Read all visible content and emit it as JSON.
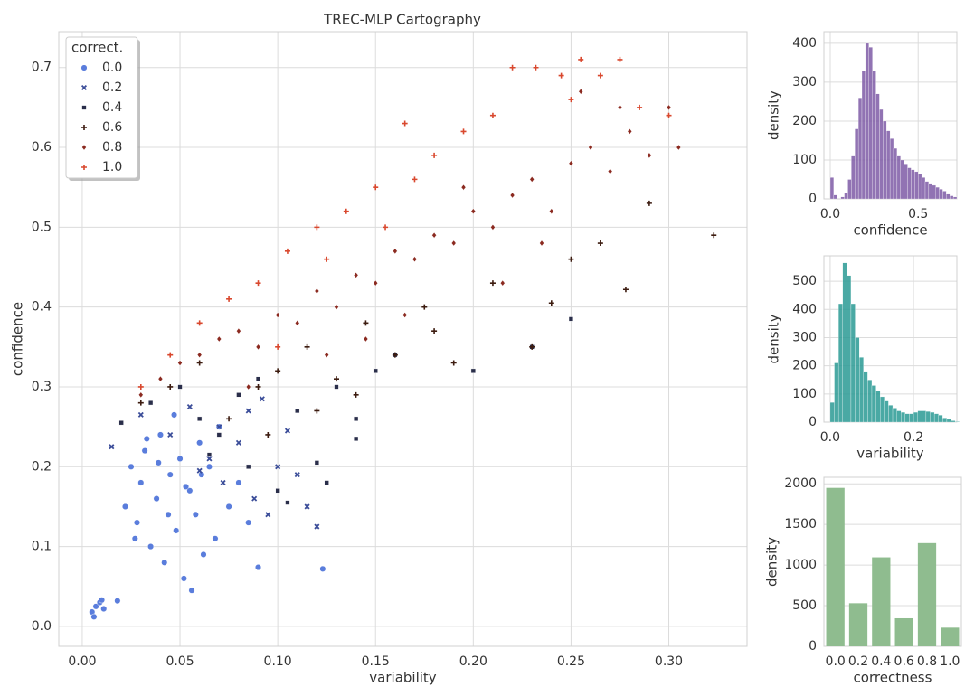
{
  "chart_data": [
    {
      "type": "scatter",
      "title": "TREC-MLP Cartography",
      "x_label": "variability",
      "y_label": "confidence",
      "legend_title": "correct.",
      "legend": "upper left",
      "grid": true,
      "xlim": [
        -0.012,
        0.34
      ],
      "ylim": [
        -0.025,
        0.745
      ],
      "xticks": [
        {
          "value": 0,
          "label": "0.00"
        },
        {
          "value": 0.05,
          "label": "0.05"
        },
        {
          "value": 0.1,
          "label": "0.10"
        },
        {
          "value": 0.15,
          "label": "0.15"
        },
        {
          "value": 0.2,
          "label": "0.20"
        },
        {
          "value": 0.25,
          "label": "0.25"
        },
        {
          "value": 0.3,
          "label": "0.30"
        }
      ],
      "yticks": [
        {
          "value": 0,
          "label": "0.0"
        },
        0.1,
        0.2,
        0.3,
        0.4,
        0.5,
        0.6,
        0.7
      ],
      "series": [
        {
          "name": "0.0",
          "color": "#5a7ddc",
          "marker": "circle",
          "x": [
            0.005,
            0.007,
            0.009,
            0.011,
            0.006,
            0.01,
            0.018,
            0.022,
            0.025,
            0.028,
            0.03,
            0.032,
            0.035,
            0.038,
            0.04,
            0.042,
            0.045,
            0.048,
            0.05,
            0.052,
            0.055,
            0.058,
            0.06,
            0.062,
            0.065,
            0.068,
            0.07,
            0.075,
            0.08,
            0.085,
            0.09,
            0.123,
            0.033,
            0.044,
            0.056,
            0.047,
            0.039,
            0.061,
            0.027,
            0.053
          ],
          "y": [
            0.018,
            0.025,
            0.03,
            0.022,
            0.012,
            0.033,
            0.032,
            0.15,
            0.2,
            0.13,
            0.18,
            0.22,
            0.1,
            0.16,
            0.24,
            0.08,
            0.19,
            0.12,
            0.21,
            0.06,
            0.17,
            0.14,
            0.23,
            0.09,
            0.2,
            0.11,
            0.25,
            0.15,
            0.18,
            0.13,
            0.074,
            0.072,
            0.235,
            0.14,
            0.045,
            0.265,
            0.205,
            0.19,
            0.11,
            0.175
          ]
        },
        {
          "name": "0.2",
          "color": "#3b4d99",
          "marker": "x",
          "x": [
            0.015,
            0.03,
            0.045,
            0.055,
            0.065,
            0.072,
            0.08,
            0.088,
            0.095,
            0.1,
            0.105,
            0.11,
            0.115,
            0.12,
            0.085,
            0.07,
            0.06,
            0.092
          ],
          "y": [
            0.225,
            0.265,
            0.24,
            0.275,
            0.21,
            0.18,
            0.23,
            0.16,
            0.14,
            0.2,
            0.245,
            0.19,
            0.15,
            0.125,
            0.27,
            0.25,
            0.195,
            0.285
          ]
        },
        {
          "name": "0.4",
          "color": "#2a2e4a",
          "marker": "square",
          "x": [
            0.02,
            0.035,
            0.05,
            0.06,
            0.07,
            0.08,
            0.09,
            0.1,
            0.11,
            0.12,
            0.13,
            0.14,
            0.15,
            0.16,
            0.2,
            0.25,
            0.23,
            0.105,
            0.125,
            0.14,
            0.085,
            0.065
          ],
          "y": [
            0.255,
            0.28,
            0.3,
            0.26,
            0.24,
            0.29,
            0.31,
            0.17,
            0.27,
            0.205,
            0.3,
            0.26,
            0.32,
            0.34,
            0.32,
            0.385,
            0.35,
            0.155,
            0.18,
            0.235,
            0.2,
            0.215
          ]
        },
        {
          "name": "0.6",
          "color": "#3d1c10",
          "marker": "plus",
          "x": [
            0.03,
            0.045,
            0.06,
            0.075,
            0.09,
            0.1,
            0.115,
            0.13,
            0.145,
            0.16,
            0.175,
            0.19,
            0.21,
            0.23,
            0.25,
            0.265,
            0.278,
            0.29,
            0.323,
            0.18,
            0.14,
            0.12,
            0.095,
            0.24
          ],
          "y": [
            0.28,
            0.3,
            0.33,
            0.26,
            0.3,
            0.32,
            0.35,
            0.31,
            0.38,
            0.34,
            0.4,
            0.33,
            0.43,
            0.35,
            0.46,
            0.48,
            0.422,
            0.53,
            0.49,
            0.37,
            0.29,
            0.27,
            0.24,
            0.405
          ]
        },
        {
          "name": "0.8",
          "color": "#8b2a20",
          "marker": "diamond",
          "x": [
            0.03,
            0.04,
            0.05,
            0.06,
            0.07,
            0.08,
            0.09,
            0.1,
            0.11,
            0.12,
            0.13,
            0.14,
            0.15,
            0.16,
            0.17,
            0.18,
            0.19,
            0.2,
            0.21,
            0.22,
            0.23,
            0.24,
            0.25,
            0.26,
            0.27,
            0.28,
            0.29,
            0.3,
            0.305,
            0.235,
            0.215,
            0.165,
            0.125,
            0.085,
            0.195,
            0.255,
            0.275,
            0.145
          ],
          "y": [
            0.29,
            0.31,
            0.33,
            0.34,
            0.36,
            0.37,
            0.35,
            0.39,
            0.38,
            0.42,
            0.4,
            0.44,
            0.43,
            0.47,
            0.46,
            0.49,
            0.48,
            0.52,
            0.5,
            0.54,
            0.56,
            0.52,
            0.58,
            0.6,
            0.57,
            0.62,
            0.59,
            0.65,
            0.6,
            0.48,
            0.43,
            0.39,
            0.34,
            0.3,
            0.55,
            0.67,
            0.65,
            0.36
          ]
        },
        {
          "name": "1.0",
          "color": "#d9482e",
          "marker": "plus",
          "x": [
            0.03,
            0.045,
            0.06,
            0.075,
            0.09,
            0.105,
            0.12,
            0.135,
            0.15,
            0.165,
            0.18,
            0.195,
            0.21,
            0.22,
            0.232,
            0.245,
            0.255,
            0.265,
            0.275,
            0.285,
            0.3,
            0.155,
            0.125,
            0.1,
            0.25,
            0.17
          ],
          "y": [
            0.3,
            0.34,
            0.38,
            0.41,
            0.43,
            0.47,
            0.5,
            0.52,
            0.55,
            0.63,
            0.59,
            0.62,
            0.64,
            0.7,
            0.7,
            0.69,
            0.71,
            0.69,
            0.71,
            0.65,
            0.64,
            0.5,
            0.46,
            0.35,
            0.66,
            0.56
          ]
        }
      ]
    },
    {
      "type": "histogram",
      "x_label": "confidence",
      "y_label": "density",
      "color": "#7e5aa6",
      "grid": true,
      "xlim": [
        -0.036,
        0.72
      ],
      "ylim": [
        0,
        430
      ],
      "xticks": [
        {
          "value": 0,
          "label": "0.0"
        },
        0.5
      ],
      "yticks": [
        0,
        100,
        200,
        300,
        400
      ],
      "bins": [
        0,
        0.02,
        0.04,
        0.06,
        0.08,
        0.1,
        0.12,
        0.14,
        0.16,
        0.18,
        0.2,
        0.22,
        0.24,
        0.26,
        0.28,
        0.3,
        0.32,
        0.34,
        0.36,
        0.38,
        0.4,
        0.42,
        0.44,
        0.46,
        0.48,
        0.5,
        0.52,
        0.54,
        0.56,
        0.58,
        0.6,
        0.62,
        0.64,
        0.66,
        0.68,
        0.7,
        0.72
      ],
      "counts": [
        55,
        10,
        0,
        5,
        15,
        50,
        110,
        180,
        260,
        330,
        400,
        390,
        330,
        270,
        230,
        200,
        175,
        155,
        130,
        110,
        100,
        90,
        80,
        75,
        70,
        65,
        55,
        45,
        40,
        35,
        30,
        25,
        20,
        12,
        8,
        5
      ]
    },
    {
      "type": "histogram",
      "x_label": "variability",
      "y_label": "density",
      "color": "#2a9a94",
      "grid": true,
      "xlim": [
        -0.015,
        0.304
      ],
      "ylim": [
        0,
        590
      ],
      "xticks": [
        {
          "value": 0,
          "label": "0.0"
        },
        0.2
      ],
      "yticks": [
        0,
        100,
        200,
        300,
        400,
        500
      ],
      "bins": [
        0,
        0.01,
        0.02,
        0.03,
        0.04,
        0.05,
        0.06,
        0.07,
        0.08,
        0.09,
        0.1,
        0.11,
        0.12,
        0.13,
        0.14,
        0.15,
        0.16,
        0.17,
        0.18,
        0.19,
        0.2,
        0.21,
        0.22,
        0.23,
        0.24,
        0.25,
        0.26,
        0.27,
        0.28,
        0.29,
        0.3,
        0.31
      ],
      "counts": [
        70,
        210,
        420,
        565,
        520,
        420,
        300,
        230,
        180,
        150,
        130,
        110,
        90,
        75,
        60,
        50,
        40,
        35,
        30,
        30,
        35,
        40,
        40,
        38,
        35,
        30,
        25,
        15,
        10,
        5,
        2
      ]
    },
    {
      "type": "bar",
      "x_label": "correctness",
      "y_label": "density",
      "color": "#8fbc8f",
      "grid": true,
      "categories": [
        "0.0",
        "0.2",
        "0.4",
        "0.6",
        "0.8",
        "1.0"
      ],
      "values": [
        1950,
        530,
        1095,
        345,
        1270,
        230
      ],
      "ylim": [
        0,
        2080
      ],
      "yticks": [
        0,
        500,
        1000,
        1500,
        2000
      ]
    }
  ]
}
